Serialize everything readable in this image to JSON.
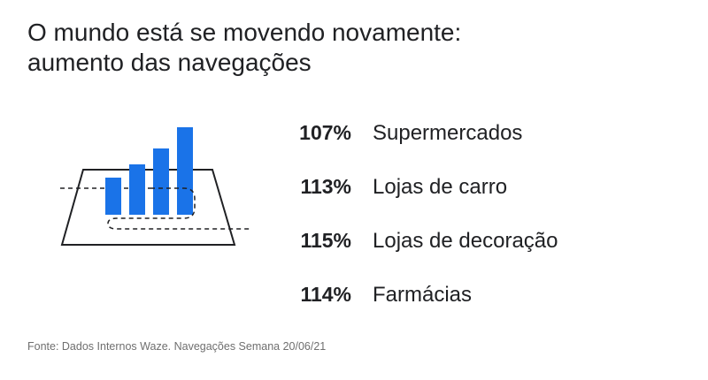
{
  "title": {
    "line1": "O mundo está se movendo novamente:",
    "line2": "aumento das navegações"
  },
  "illustration": {
    "bar_color": "#1a73e8",
    "outline_color": "#202124"
  },
  "stats": [
    {
      "percent": "107%",
      "label": "Supermercados"
    },
    {
      "percent": "113%",
      "label": "Lojas de carro"
    },
    {
      "percent": "115%",
      "label": "Lojas de decoração"
    },
    {
      "percent": "114%",
      "label": "Farmácias"
    }
  ],
  "source": "Fonte: Dados Internos Waze. Navegações Semana 20/06/21"
}
